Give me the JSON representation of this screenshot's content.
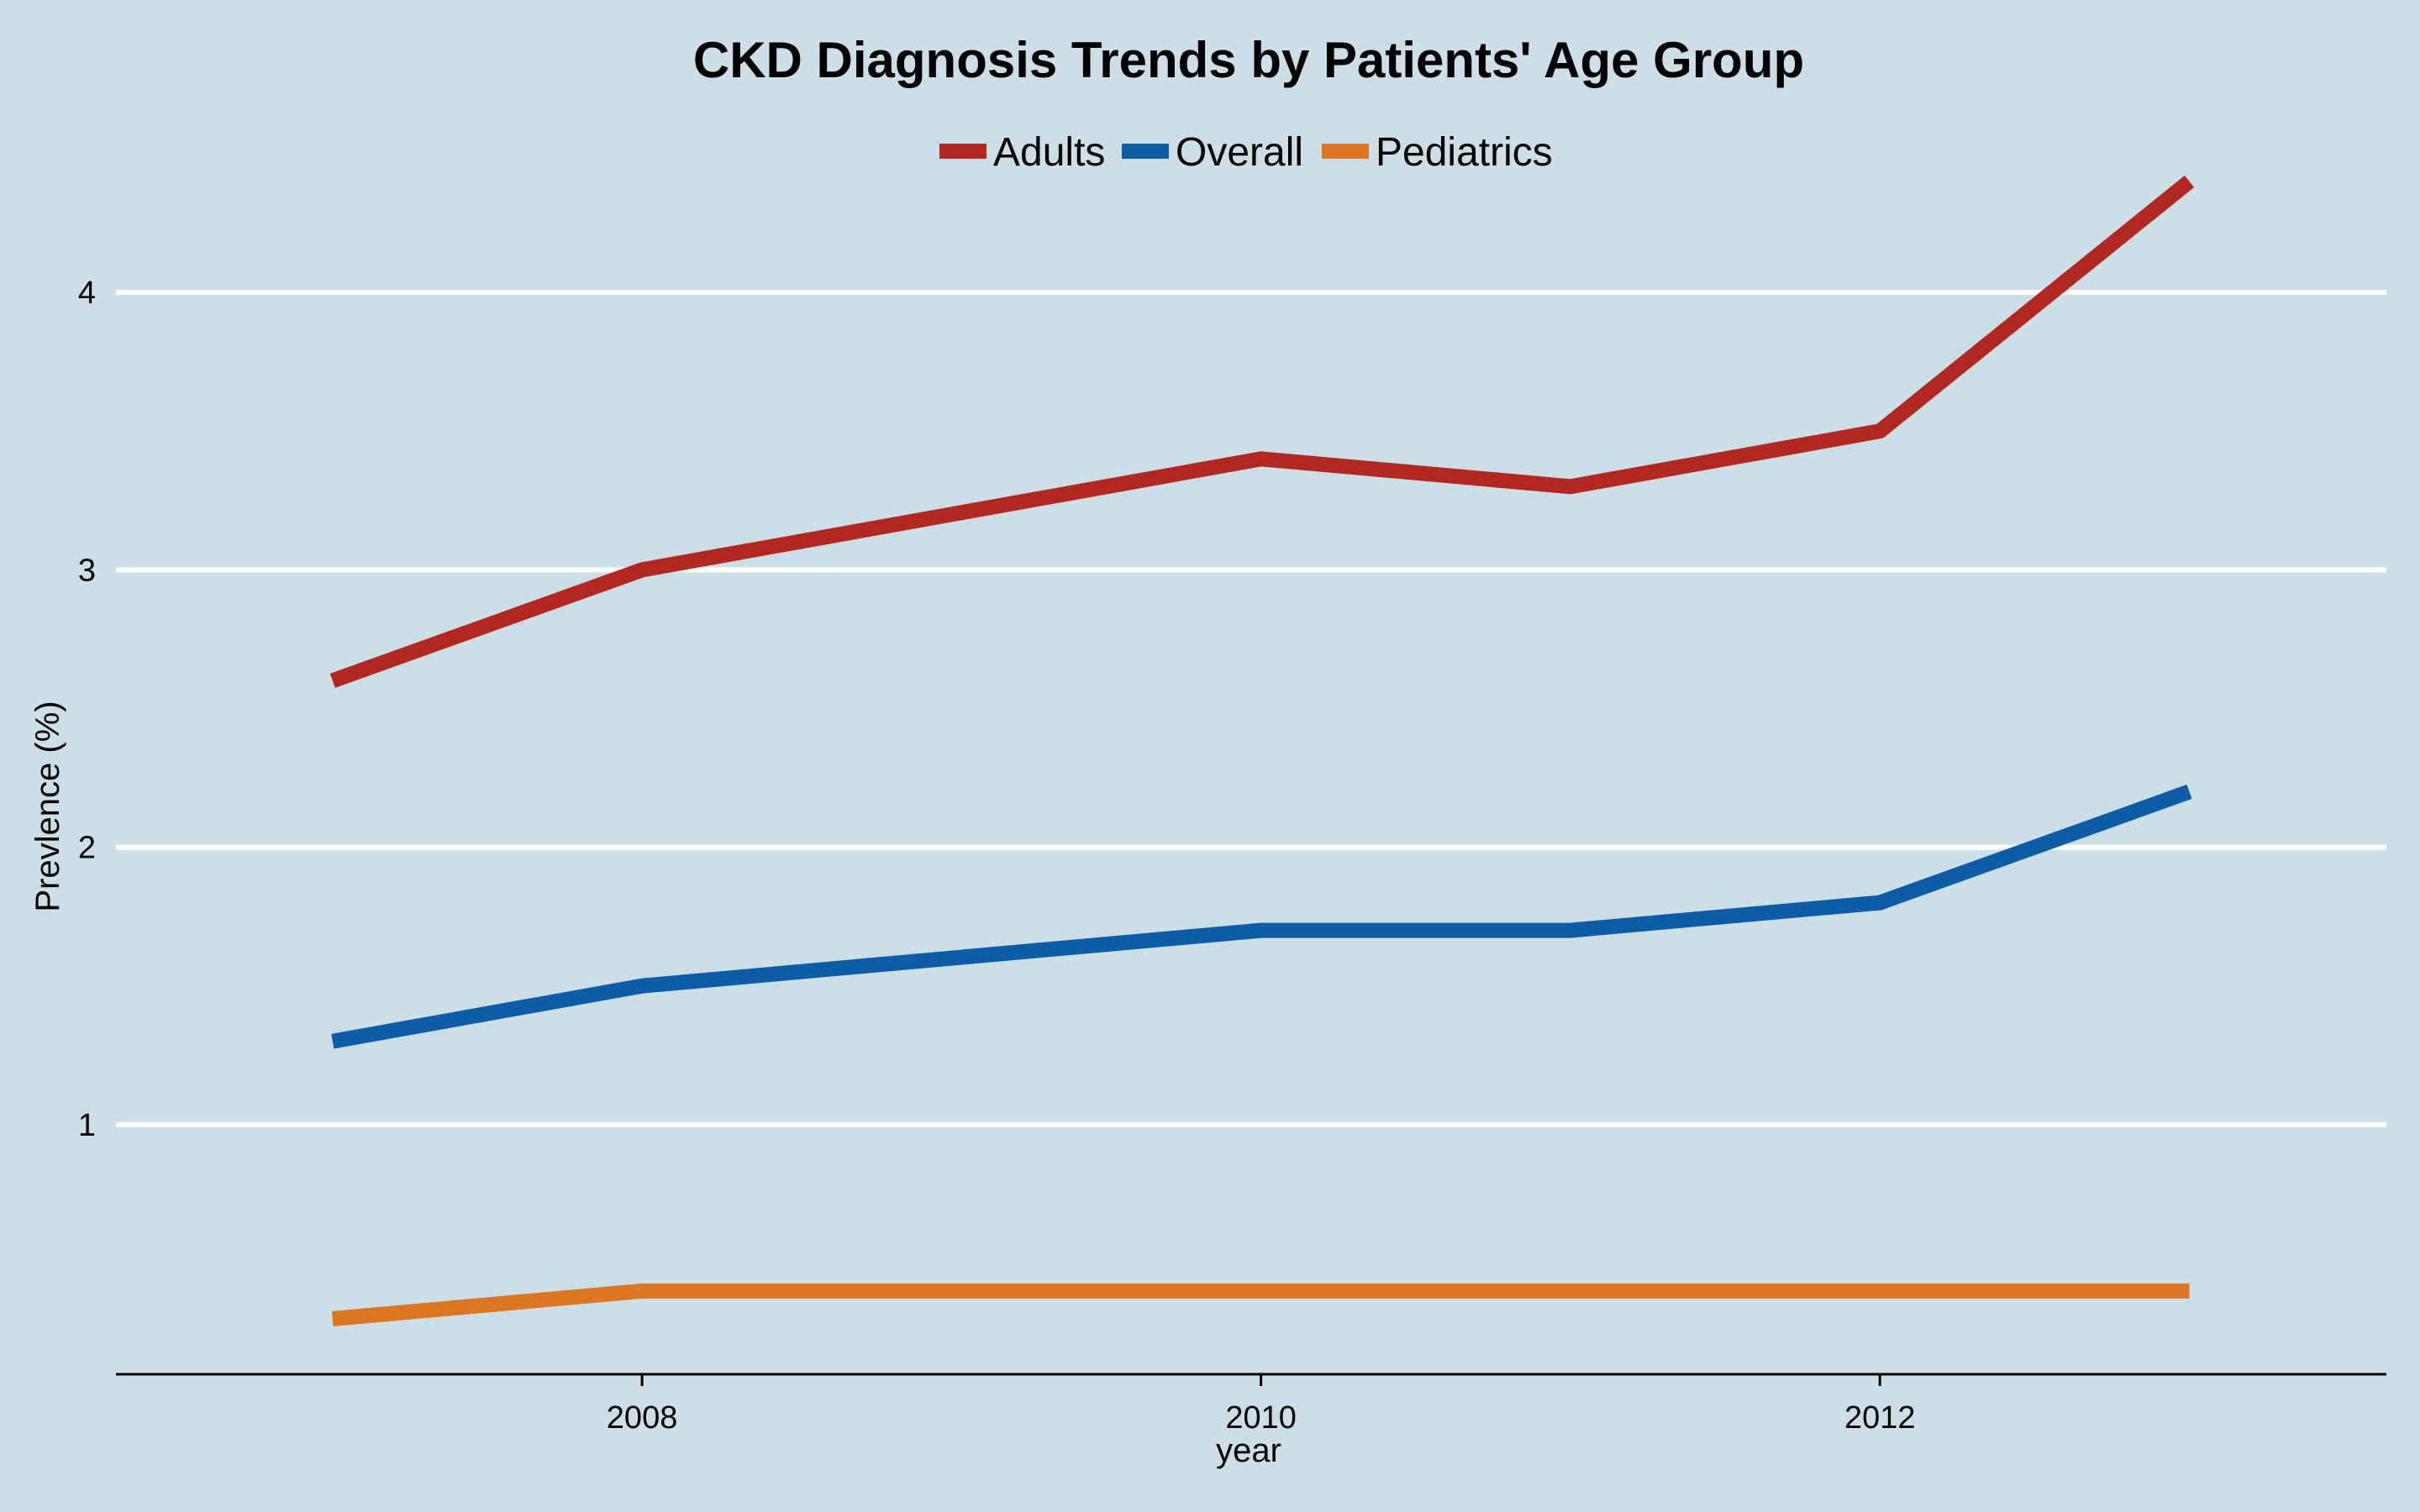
{
  "chart_data": {
    "type": "line",
    "title": "CKD Diagnosis Trends by Patients' Age Group",
    "xlabel": "year",
    "ylabel": "Prevlence (%)",
    "x": [
      2007,
      2008,
      2010,
      2011,
      2012,
      2013
    ],
    "xticks": [
      "2008",
      "2010",
      "2012"
    ],
    "xtick_values": [
      2008,
      2010,
      2012
    ],
    "yticks": [
      "1",
      "2",
      "3",
      "4"
    ],
    "ytick_values": [
      1,
      2,
      3,
      4
    ],
    "xlim": [
      2006.3,
      2013.3
    ],
    "ylim": [
      0.1,
      4.6
    ],
    "grid": "horizontal",
    "legend_position": "top-center",
    "series": [
      {
        "name": "Adults",
        "color": "#b0281f",
        "values": [
          2.6,
          3.0,
          3.4,
          3.3,
          3.5,
          4.4
        ]
      },
      {
        "name": "Overall",
        "color": "#0d5ca6",
        "values": [
          1.3,
          1.5,
          1.7,
          1.7,
          1.8,
          2.2
        ]
      },
      {
        "name": "Pediatrics",
        "color": "#dd7623",
        "values": [
          0.3,
          0.4,
          0.4,
          0.4,
          0.4,
          0.4
        ]
      }
    ]
  }
}
